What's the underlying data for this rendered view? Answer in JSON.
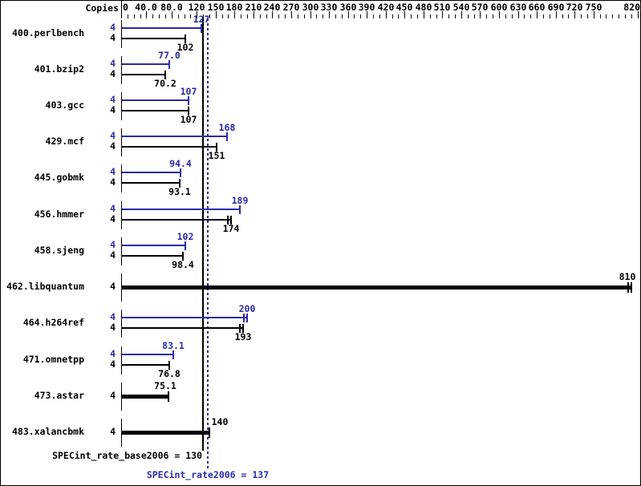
{
  "header": {
    "copies_label": "Copies"
  },
  "colors": {
    "peak_blue": "#2a2aa8",
    "base_black": "#000000",
    "background": "#ffffff"
  },
  "chart_data": {
    "type": "bar",
    "orientation": "horizontal",
    "title": "",
    "xlabel": "",
    "ylabel": "",
    "xlim": [
      0,
      820
    ],
    "axis_minor_step": 10,
    "grid": false,
    "legend": false,
    "axis_labels": [
      {
        "value": 0,
        "label": "0"
      },
      {
        "value": 40,
        "label": "40.0"
      },
      {
        "value": 80,
        "label": "80.0"
      },
      {
        "value": 120,
        "label": "120"
      },
      {
        "value": 150,
        "label": "150"
      },
      {
        "value": 180,
        "label": "180"
      },
      {
        "value": 210,
        "label": "210"
      },
      {
        "value": 240,
        "label": "240"
      },
      {
        "value": 270,
        "label": "270"
      },
      {
        "value": 300,
        "label": "300"
      },
      {
        "value": 330,
        "label": "330"
      },
      {
        "value": 360,
        "label": "360"
      },
      {
        "value": 390,
        "label": "390"
      },
      {
        "value": 420,
        "label": "420"
      },
      {
        "value": 450,
        "label": "450"
      },
      {
        "value": 480,
        "label": "480"
      },
      {
        "value": 510,
        "label": "510"
      },
      {
        "value": 540,
        "label": "540"
      },
      {
        "value": 570,
        "label": "570"
      },
      {
        "value": 600,
        "label": "600"
      },
      {
        "value": 630,
        "label": "630"
      },
      {
        "value": 660,
        "label": "660"
      },
      {
        "value": 690,
        "label": "690"
      },
      {
        "value": 720,
        "label": "720"
      },
      {
        "value": 750,
        "label": "750"
      },
      {
        "value": 820,
        "label": "820"
      }
    ],
    "categories": [
      "400.perlbench",
      "401.bzip2",
      "403.gcc",
      "429.mcf",
      "445.gobmk",
      "456.hmmer",
      "458.sjeng",
      "462.libquantum",
      "464.h264ref",
      "471.omnetpp",
      "473.astar",
      "483.xalancbmk"
    ],
    "series": [
      {
        "name": "peak",
        "color": "#2a2aa8",
        "values": [
          127,
          77.0,
          107,
          168,
          94.4,
          189,
          102,
          null,
          200,
          83.1,
          null,
          null
        ]
      },
      {
        "name": "base",
        "color": "#000000",
        "values": [
          102,
          70.2,
          107,
          151,
          93.1,
          174,
          98.4,
          810,
          193,
          76.8,
          75.1,
          140
        ]
      }
    ],
    "rows": [
      {
        "name": "400.perlbench",
        "copies": "4",
        "peak": 127,
        "peak_label": "127",
        "base": 102,
        "base_label": "102",
        "single": false
      },
      {
        "name": "401.bzip2",
        "copies": "4",
        "peak": 77.0,
        "peak_label": "77.0",
        "base": 70.2,
        "base_label": "70.2",
        "single": false
      },
      {
        "name": "403.gcc",
        "copies": "4",
        "peak": 107,
        "peak_label": "107",
        "base": 107,
        "base_label": "107",
        "single": false
      },
      {
        "name": "429.mcf",
        "copies": "4",
        "peak": 168,
        "peak_label": "168",
        "base": 151,
        "base_label": "151",
        "single": false
      },
      {
        "name": "445.gobmk",
        "copies": "4",
        "peak": 94.4,
        "peak_label": "94.4",
        "base": 93.1,
        "base_label": "93.1",
        "single": false
      },
      {
        "name": "456.hmmer",
        "copies": "4",
        "peak": 189,
        "peak_label": "189",
        "base": 174,
        "base_label": "174",
        "single": false,
        "base_double_cap": true
      },
      {
        "name": "458.sjeng",
        "copies": "4",
        "peak": 102,
        "peak_label": "102",
        "base": 98.4,
        "base_label": "98.4",
        "single": false
      },
      {
        "name": "462.libquantum",
        "copies": "4",
        "peak": null,
        "peak_label": "",
        "base": 810,
        "base_label": "810",
        "single": true,
        "base_double_cap": true,
        "label_dx": -5
      },
      {
        "name": "464.h264ref",
        "copies": "4",
        "peak": 200,
        "peak_label": "200",
        "base": 193,
        "base_label": "193",
        "single": false,
        "peak_double_cap": true,
        "base_double_cap": true
      },
      {
        "name": "471.omnetpp",
        "copies": "4",
        "peak": 83.1,
        "peak_label": "83.1",
        "base": 76.8,
        "base_label": "76.8",
        "single": false
      },
      {
        "name": "473.astar",
        "copies": "4",
        "peak": null,
        "peak_label": "",
        "base": 75.1,
        "base_label": "75.1",
        "single": true,
        "label_dx": -4
      },
      {
        "name": "483.xalancbmk",
        "copies": "4",
        "peak": null,
        "peak_label": "",
        "base": 140,
        "base_label": "140",
        "single": true,
        "label_dx": 13
      }
    ],
    "reference_lines": [
      {
        "name": "SPECint_rate_base2006",
        "value": 130,
        "display": "SPECint_rate_base2006 = 130",
        "line_style": "solid",
        "color": "#000000"
      },
      {
        "name": "SPECint_rate2006",
        "value": 137,
        "display": "SPECint_rate2006 = 137",
        "line_style": "dotted",
        "color": "#2a2aa8"
      }
    ]
  }
}
